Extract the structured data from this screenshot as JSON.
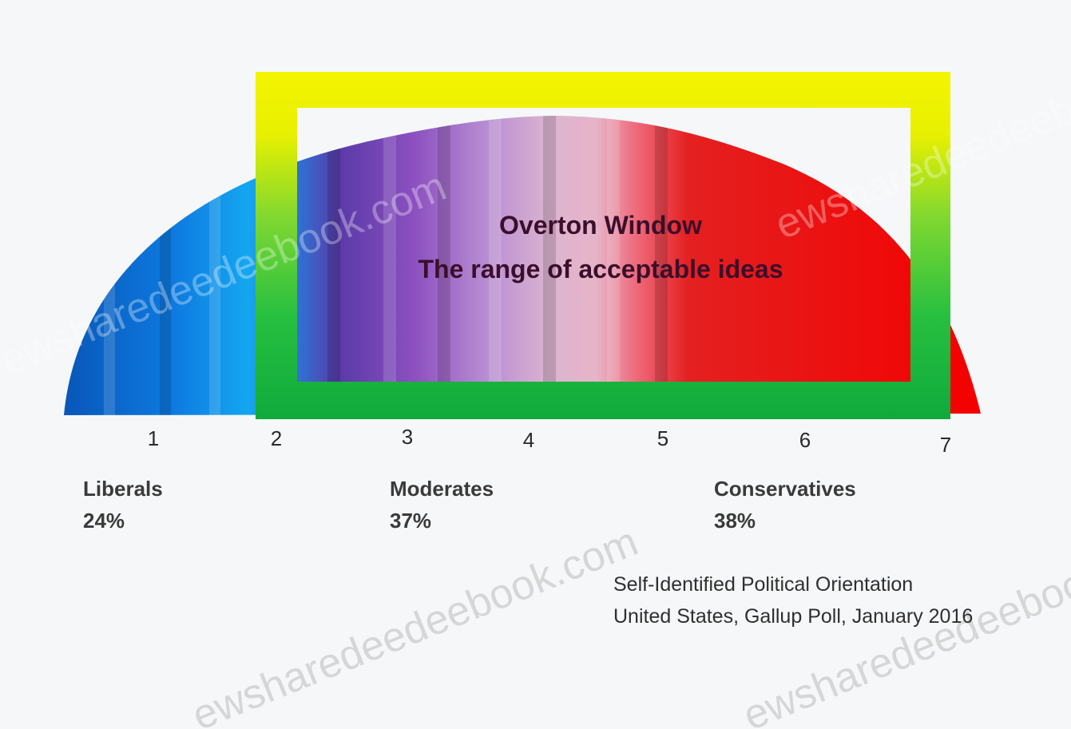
{
  "window_title": {
    "line1": "Overton Window",
    "line2": "The range of acceptable ideas"
  },
  "scale": {
    "ticks": [
      "1",
      "2",
      "3",
      "4",
      "5",
      "6",
      "7"
    ]
  },
  "groups": [
    {
      "name": "Liberals",
      "percent": "24%"
    },
    {
      "name": "Moderates",
      "percent": "37%"
    },
    {
      "name": "Conservatives",
      "percent": "38%"
    }
  ],
  "source": {
    "line1": "Self-Identified Political Orientation",
    "line2": "United States, Gallup Poll, January 2016"
  },
  "watermark": "ewsharedeedeebook.com",
  "colors": {
    "liberal_blue": "#0a63c8",
    "moderate_purple": "#8a47b8",
    "conservative_red": "#e60000",
    "window_top_yellow": "#f2f200",
    "window_bottom_green": "#10b040"
  }
}
